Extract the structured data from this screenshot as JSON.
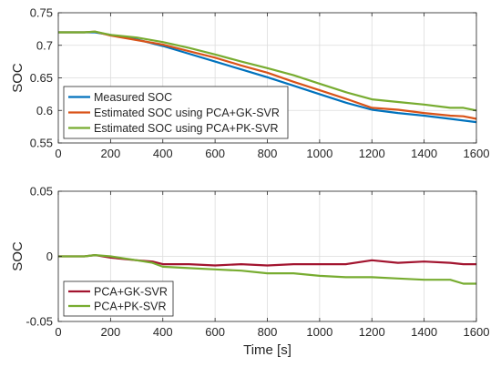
{
  "chart_data": [
    {
      "type": "line",
      "title": "",
      "xlabel": "",
      "ylabel": "SOC",
      "xlim": [
        0,
        1600
      ],
      "ylim": [
        0.55,
        0.75
      ],
      "xticks": [
        0,
        200,
        400,
        600,
        800,
        1000,
        1200,
        1400,
        1600
      ],
      "yticks": [
        0.55,
        0.6,
        0.65,
        0.7,
        0.75
      ],
      "ytick_labels": [
        "0.55",
        "0.6",
        "0.65",
        "0.7",
        "0.75"
      ],
      "grid": true,
      "legend_position": "bottom-left",
      "series": [
        {
          "name": "Measured SOC",
          "color": "#0072BD",
          "x": [
            0,
            100,
            140,
            200,
            300,
            400,
            500,
            600,
            700,
            800,
            900,
            1000,
            1100,
            1200,
            1300,
            1400,
            1500,
            1600
          ],
          "y": [
            0.72,
            0.72,
            0.72,
            0.716,
            0.709,
            0.699,
            0.687,
            0.675,
            0.663,
            0.651,
            0.638,
            0.625,
            0.612,
            0.601,
            0.596,
            0.592,
            0.587,
            0.582
          ]
        },
        {
          "name": "Estimated SOC using PCA+GK-SVR",
          "color": "#D95319",
          "x": [
            0,
            100,
            140,
            200,
            300,
            400,
            500,
            600,
            700,
            800,
            900,
            1000,
            1100,
            1200,
            1300,
            1400,
            1500,
            1550,
            1600
          ],
          "y": [
            0.72,
            0.72,
            0.721,
            0.715,
            0.708,
            0.701,
            0.691,
            0.681,
            0.669,
            0.658,
            0.644,
            0.631,
            0.618,
            0.604,
            0.601,
            0.596,
            0.592,
            0.591,
            0.587
          ]
        },
        {
          "name": "Estimated SOC using PCA+PK-SVR",
          "color": "#77AC30",
          "x": [
            0,
            100,
            140,
            200,
            300,
            400,
            500,
            600,
            700,
            800,
            900,
            1000,
            1100,
            1200,
            1300,
            1400,
            1500,
            1550,
            1600
          ],
          "y": [
            0.72,
            0.72,
            0.721,
            0.716,
            0.712,
            0.705,
            0.696,
            0.686,
            0.675,
            0.665,
            0.654,
            0.641,
            0.628,
            0.617,
            0.613,
            0.609,
            0.604,
            0.604,
            0.6
          ]
        }
      ]
    },
    {
      "type": "line",
      "title": "",
      "xlabel": "Time [s]",
      "ylabel": "SOC",
      "xlim": [
        0,
        1600
      ],
      "ylim": [
        -0.05,
        0.05
      ],
      "xticks": [
        0,
        200,
        400,
        600,
        800,
        1000,
        1200,
        1400,
        1600
      ],
      "yticks": [
        -0.05,
        0,
        0.05
      ],
      "ytick_labels": [
        "-0.05",
        "0",
        "0.05"
      ],
      "grid": true,
      "legend_position": "bottom-left",
      "series": [
        {
          "name": "PCA+GK-SVR",
          "color": "#A2142F",
          "x": [
            0,
            100,
            140,
            200,
            300,
            360,
            400,
            500,
            600,
            700,
            800,
            900,
            1000,
            1100,
            1200,
            1300,
            1400,
            1500,
            1550,
            1600
          ],
          "y": [
            0,
            0,
            0.001,
            -0.001,
            -0.003,
            -0.004,
            -0.006,
            -0.006,
            -0.007,
            -0.006,
            -0.007,
            -0.006,
            -0.006,
            -0.006,
            -0.003,
            -0.005,
            -0.004,
            -0.005,
            -0.006,
            -0.006
          ]
        },
        {
          "name": "PCA+PK-SVR",
          "color": "#77AC30",
          "x": [
            0,
            100,
            140,
            200,
            300,
            360,
            400,
            500,
            600,
            700,
            800,
            900,
            1000,
            1100,
            1200,
            1300,
            1400,
            1500,
            1550,
            1600
          ],
          "y": [
            0,
            0,
            0.001,
            0,
            -0.003,
            -0.005,
            -0.008,
            -0.009,
            -0.01,
            -0.011,
            -0.013,
            -0.013,
            -0.015,
            -0.016,
            -0.016,
            -0.017,
            -0.018,
            -0.018,
            -0.021,
            -0.021
          ]
        }
      ]
    }
  ]
}
